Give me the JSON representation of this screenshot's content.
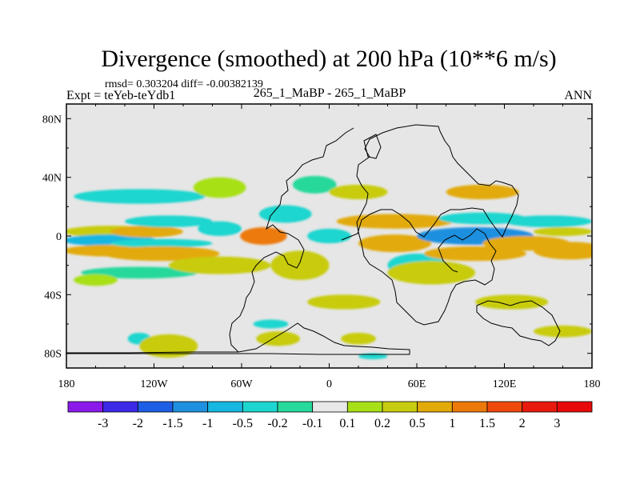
{
  "chart_data": {
    "type": "heatmap",
    "title": "Divergence (smoothed) at 200 hPa (10**6 m/s)",
    "stats_text": "rmsd= 0.303204 diff= -0.00382139",
    "left_label": "Expt = teYeb-teYdb1",
    "center_label": "265_1_MaBP - 265_1_MaBP",
    "right_label": "ANN",
    "x_ticks": [
      {
        "value": -180,
        "label": "180"
      },
      {
        "value": -120,
        "label": "120W"
      },
      {
        "value": -60,
        "label": "60W"
      },
      {
        "value": 0,
        "label": "0"
      },
      {
        "value": 60,
        "label": "60E"
      },
      {
        "value": 120,
        "label": "120E"
      },
      {
        "value": 180,
        "label": "180"
      }
    ],
    "y_ticks": [
      {
        "value": 80,
        "label": "80N"
      },
      {
        "value": 40,
        "label": "40N"
      },
      {
        "value": 0,
        "label": "0"
      },
      {
        "value": -40,
        "label": "40S"
      },
      {
        "value": -80,
        "label": "80S"
      }
    ],
    "xlim": [
      -180,
      180
    ],
    "ylim": [
      -90,
      90
    ],
    "colorbar": {
      "labels": [
        "-3",
        "-2",
        "-1.5",
        "-1",
        "-0.5",
        "-0.2",
        "-0.1",
        "0.1",
        "0.2",
        "0.5",
        "1",
        "1.5",
        "2",
        "3"
      ],
      "colors": [
        "#8a19ea",
        "#3c2ae8",
        "#1e5ee6",
        "#1f90df",
        "#16b7e0",
        "#1dd6cf",
        "#27d99b",
        "#e8e8e8",
        "#a8e018",
        "#c8cc10",
        "#e2aa08",
        "#ec7a0a",
        "#ee4a0c",
        "#e81a0e",
        "#e80a0a"
      ]
    },
    "fields": [
      {
        "lon": -150,
        "lat": 3,
        "rx": 32,
        "ry": 4,
        "value": 0.4
      },
      {
        "lon": -150,
        "lat": -3,
        "rx": 32,
        "ry": 4,
        "value": -0.6
      },
      {
        "lon": -150,
        "lat": -10,
        "rx": 32,
        "ry": 4,
        "value": 0.6
      },
      {
        "lon": -125,
        "lat": 3,
        "rx": 25,
        "ry": 4,
        "value": 0.5
      },
      {
        "lon": -130,
        "lat": 27,
        "rx": 45,
        "ry": 5,
        "value": -0.25
      },
      {
        "lon": -110,
        "lat": 10,
        "rx": 30,
        "ry": 4,
        "value": -0.5
      },
      {
        "lon": -115,
        "lat": -5,
        "rx": 35,
        "ry": 3,
        "value": -0.4
      },
      {
        "lon": -115,
        "lat": -12,
        "rx": 40,
        "ry": 5,
        "value": 0.7
      },
      {
        "lon": -130,
        "lat": -25,
        "rx": 40,
        "ry": 4,
        "value": -0.2
      },
      {
        "lon": -160,
        "lat": -30,
        "rx": 15,
        "ry": 4,
        "value": 0.15
      },
      {
        "lon": -75,
        "lat": 33,
        "rx": 18,
        "ry": 7,
        "value": 0.15
      },
      {
        "lon": -75,
        "lat": 5,
        "rx": 15,
        "ry": 5,
        "value": -0.5
      },
      {
        "lon": -75,
        "lat": -20,
        "rx": 35,
        "ry": 6,
        "value": 0.3
      },
      {
        "lon": -45,
        "lat": 0,
        "rx": 16,
        "ry": 6,
        "value": 1.0
      },
      {
        "lon": -30,
        "lat": 15,
        "rx": 18,
        "ry": 6,
        "value": -0.35
      },
      {
        "lon": -20,
        "lat": -20,
        "rx": 20,
        "ry": 10,
        "value": 0.3
      },
      {
        "lon": 0,
        "lat": 0,
        "rx": 15,
        "ry": 5,
        "value": -0.3
      },
      {
        "lon": -10,
        "lat": 35,
        "rx": 15,
        "ry": 6,
        "value": -0.2
      },
      {
        "lon": 20,
        "lat": 30,
        "rx": 20,
        "ry": 5,
        "value": 0.2
      },
      {
        "lon": 45,
        "lat": 10,
        "rx": 40,
        "ry": 5,
        "value": 0.7
      },
      {
        "lon": 45,
        "lat": -5,
        "rx": 25,
        "ry": 6,
        "value": 0.9
      },
      {
        "lon": 10,
        "lat": -45,
        "rx": 25,
        "ry": 5,
        "value": 0.2
      },
      {
        "lon": 60,
        "lat": -20,
        "rx": 20,
        "ry": 8,
        "value": -0.3
      },
      {
        "lon": 70,
        "lat": -25,
        "rx": 30,
        "ry": 8,
        "value": 0.3
      },
      {
        "lon": 105,
        "lat": 12,
        "rx": 30,
        "ry": 4,
        "value": -0.5
      },
      {
        "lon": 100,
        "lat": 0,
        "rx": 40,
        "ry": 6,
        "value": -1.3
      },
      {
        "lon": 100,
        "lat": -12,
        "rx": 35,
        "ry": 5,
        "value": 0.8
      },
      {
        "lon": 105,
        "lat": 30,
        "rx": 25,
        "ry": 5,
        "value": 0.6
      },
      {
        "lon": 135,
        "lat": -5,
        "rx": 30,
        "ry": 5,
        "value": 0.9
      },
      {
        "lon": 150,
        "lat": 10,
        "rx": 30,
        "ry": 4,
        "value": -0.4
      },
      {
        "lon": 160,
        "lat": 3,
        "rx": 20,
        "ry": 3,
        "value": 0.3
      },
      {
        "lon": 165,
        "lat": -10,
        "rx": 25,
        "ry": 6,
        "value": 0.6
      },
      {
        "lon": 125,
        "lat": -45,
        "rx": 25,
        "ry": 5,
        "value": 0.2
      },
      {
        "lon": 160,
        "lat": -65,
        "rx": 20,
        "ry": 4,
        "value": 0.2
      },
      {
        "lon": -40,
        "lat": -60,
        "rx": 12,
        "ry": 3,
        "value": -0.3
      },
      {
        "lon": -35,
        "lat": -70,
        "rx": 15,
        "ry": 5,
        "value": 0.3
      },
      {
        "lon": 20,
        "lat": -70,
        "rx": 12,
        "ry": 4,
        "value": 0.25
      },
      {
        "lon": 30,
        "lat": -82,
        "rx": 10,
        "ry": 2,
        "value": -0.3
      },
      {
        "lon": -130,
        "lat": -70,
        "rx": 8,
        "ry": 4,
        "value": -0.3
      },
      {
        "lon": -110,
        "lat": -75,
        "rx": 20,
        "ry": 8,
        "value": 0.3
      }
    ]
  }
}
